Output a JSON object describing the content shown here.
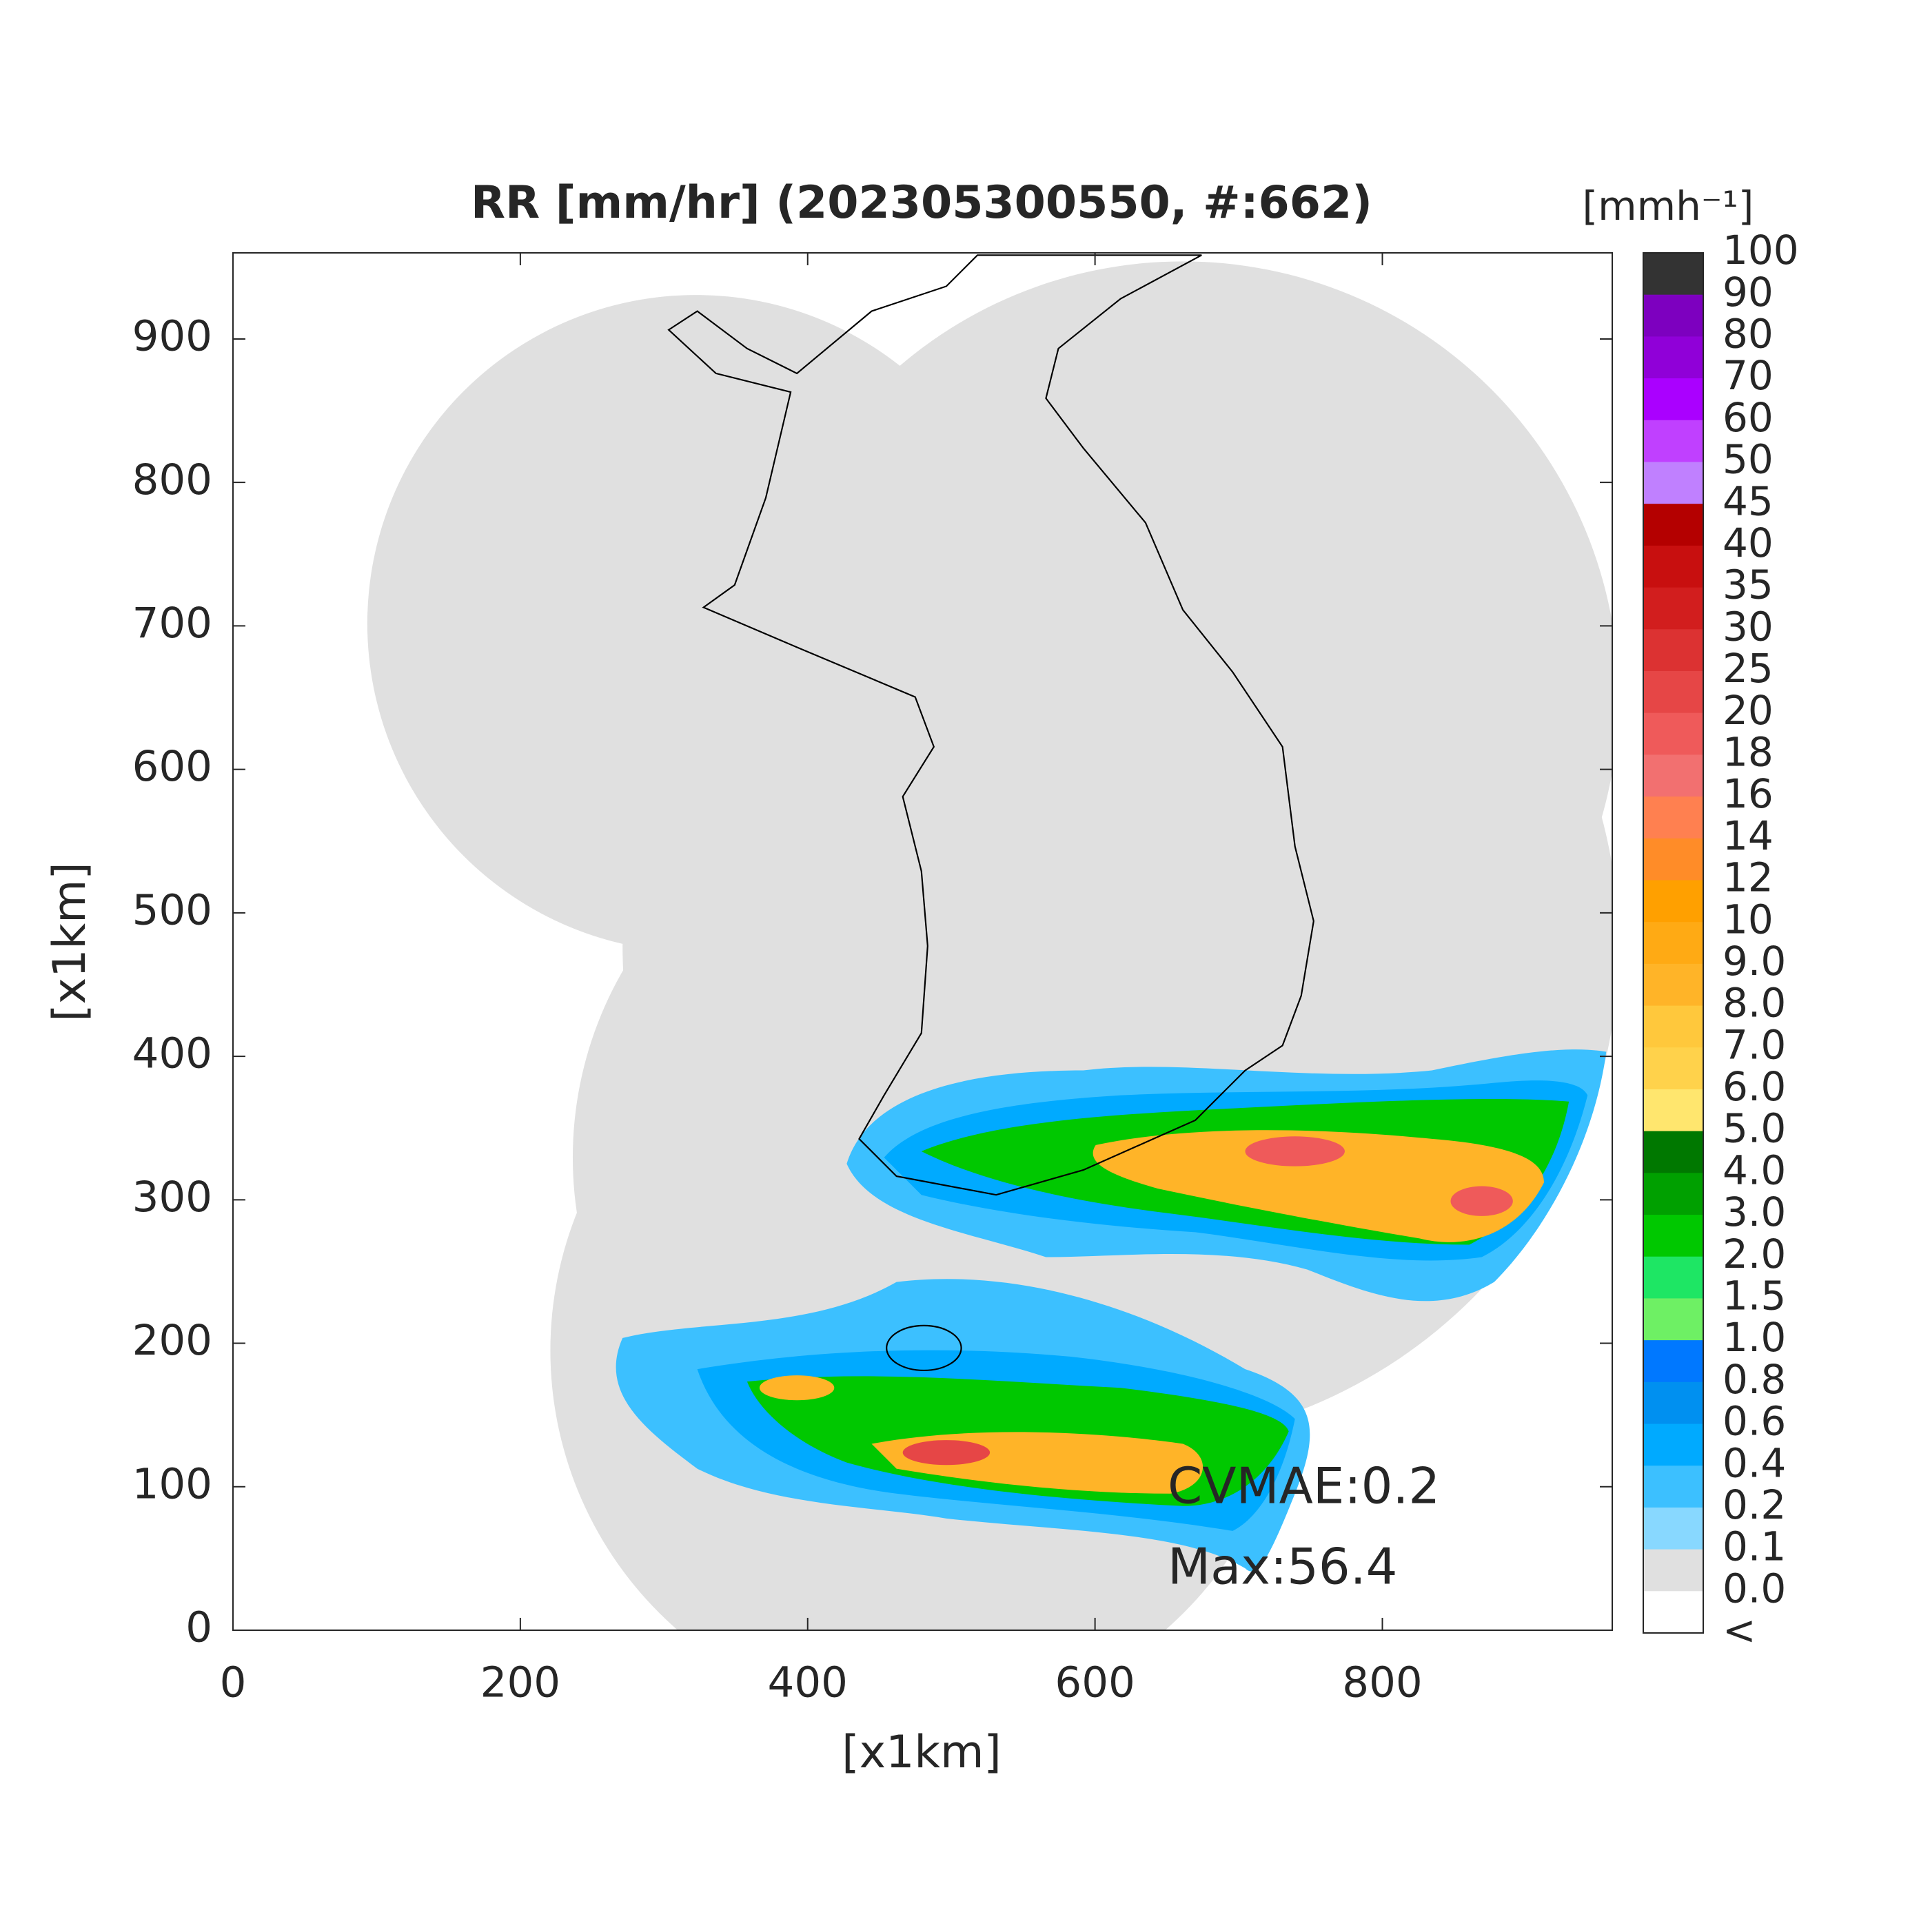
{
  "chart_data": {
    "type": "map",
    "title": "RR [mm/hr] (202305300550, #:662)",
    "xlabel": "[x1km]",
    "ylabel": "[x1km]",
    "xlim": [
      0,
      960
    ],
    "ylim": [
      0,
      960
    ],
    "xticks": [
      0,
      200,
      400,
      600,
      800
    ],
    "yticks": [
      0,
      100,
      200,
      300,
      400,
      500,
      600,
      700,
      800,
      900
    ],
    "colorbar_title": "[mmh⁻¹]",
    "colorbar_labels": [
      "100",
      "90",
      "80",
      "70",
      "60",
      "50",
      "45",
      "40",
      "35",
      "30",
      "25",
      "20",
      "18",
      "16",
      "14",
      "12",
      "10",
      "9.0",
      "8.0",
      "7.0",
      "6.0",
      "5.0",
      "4.0",
      "3.0",
      "2.0",
      "1.5",
      "1.0",
      "0.8",
      "0.6",
      "0.4",
      "0.2",
      "0.1",
      "0.0",
      "<"
    ],
    "colorbar_colors": [
      "#333333",
      "#7d00bf",
      "#9000d8",
      "#aa00ff",
      "#c040ff",
      "#c080ff",
      "#b40000",
      "#c80f0f",
      "#d21e1e",
      "#dc3232",
      "#e64646",
      "#ef5a5a",
      "#f27070",
      "#ff8050",
      "#ff8c28",
      "#ffa000",
      "#ffaa14",
      "#ffb428",
      "#ffc83c",
      "#ffd24b",
      "#ffe66e",
      "#007800",
      "#00a000",
      "#00c800",
      "#1ee664",
      "#6ef064",
      "#0078ff",
      "#0090f0",
      "#00aaff",
      "#3cc0ff",
      "#88d8ff",
      "#e0e0e0",
      "#ffffff"
    ],
    "annotations": [
      "CVMAE:0.2",
      "Max:56.4"
    ]
  }
}
